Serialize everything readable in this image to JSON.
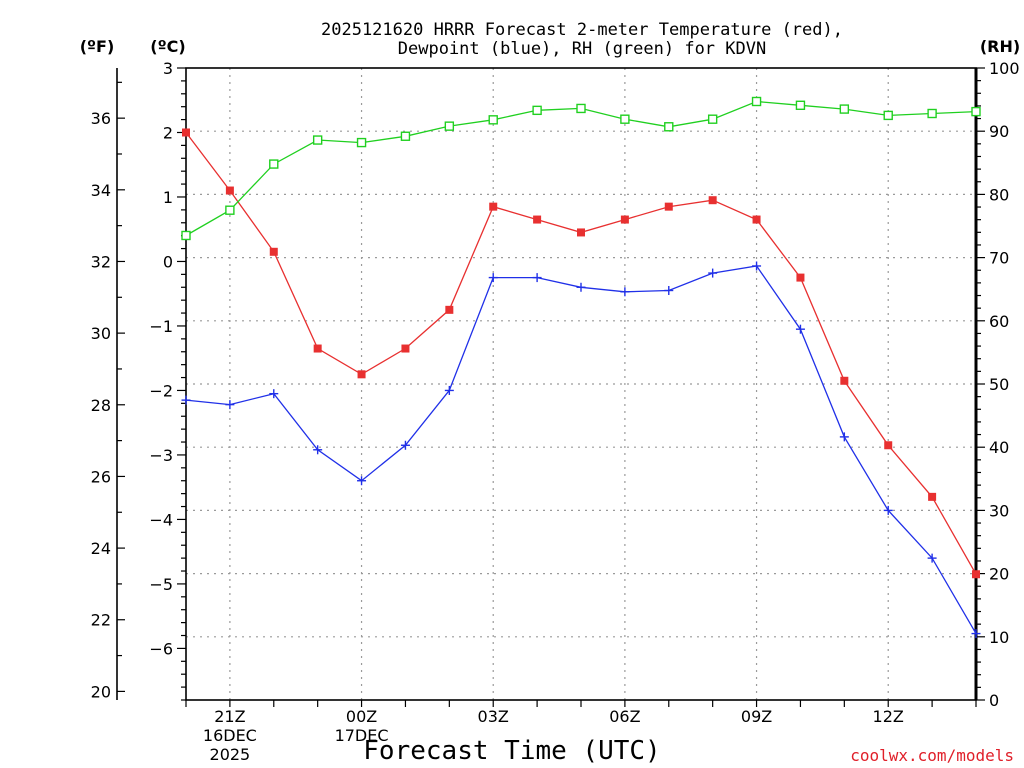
{
  "chart_data": {
    "type": "line",
    "title_lines": [
      "2025121620 HRRR Forecast 2-meter Temperature (red),",
      "Dewpoint (blue), RH (green) for KDVN"
    ],
    "left_unit_f": "(ºF)",
    "left_unit_c": "(ºC)",
    "right_unit": "(RH)",
    "xlabel": "Forecast Time (UTC)",
    "credit": "coolwx.com/models",
    "x_hours": [
      20,
      21,
      22,
      23,
      24,
      25,
      26,
      27,
      28,
      29,
      30,
      31,
      32,
      33,
      34,
      35,
      36,
      37,
      38
    ],
    "x_range": [
      20,
      38
    ],
    "x_ticks": [
      {
        "x": 21,
        "lines": [
          "21Z",
          "16DEC",
          "2025"
        ]
      },
      {
        "x": 24,
        "lines": [
          "00Z",
          "17DEC"
        ]
      },
      {
        "x": 27,
        "lines": [
          "03Z"
        ]
      },
      {
        "x": 30,
        "lines": [
          "06Z"
        ]
      },
      {
        "x": 33,
        "lines": [
          "09Z"
        ]
      },
      {
        "x": 36,
        "lines": [
          "12Z"
        ]
      }
    ],
    "celsius_range": [
      -6.8,
      3.0
    ],
    "celsius_ticks": [
      "3",
      "2",
      "1",
      "0",
      "−1",
      "−2",
      "−3",
      "−4",
      "−5",
      "−6"
    ],
    "fahrenheit_ticks": [
      "36",
      "34",
      "32",
      "30",
      "28",
      "26",
      "24",
      "22",
      "20"
    ],
    "rh_range": [
      0,
      100
    ],
    "rh_ticks": [
      "100",
      "90",
      "80",
      "70",
      "60",
      "50",
      "40",
      "30",
      "20",
      "10",
      "0"
    ],
    "series": [
      {
        "name": "Temperature",
        "units": "C",
        "color": "#e83030",
        "marker": "filled-square",
        "values": [
          2.0,
          1.1,
          0.15,
          -1.35,
          -1.75,
          -1.35,
          -0.75,
          0.85,
          0.65,
          0.45,
          0.65,
          0.85,
          0.95,
          0.65,
          -0.25,
          -1.85,
          -2.85,
          -3.65,
          -4.85
        ]
      },
      {
        "name": "Dewpoint",
        "units": "C",
        "color": "#2030e8",
        "marker": "plus",
        "values": [
          -2.15,
          -2.22,
          -2.05,
          -2.92,
          -3.4,
          -2.85,
          -2.0,
          -0.25,
          -0.25,
          -0.4,
          -0.47,
          -0.45,
          -0.18,
          -0.07,
          -1.05,
          -2.72,
          -3.86,
          -4.6,
          -5.77
        ]
      },
      {
        "name": "RH",
        "units": "%",
        "color": "#20d020",
        "marker": "open-square",
        "values": [
          73.5,
          77.5,
          84.8,
          88.6,
          88.2,
          89.2,
          90.8,
          91.8,
          93.3,
          93.6,
          91.9,
          90.7,
          91.9,
          94.7,
          94.1,
          93.5,
          92.5,
          92.8,
          93.1
        ]
      }
    ]
  }
}
